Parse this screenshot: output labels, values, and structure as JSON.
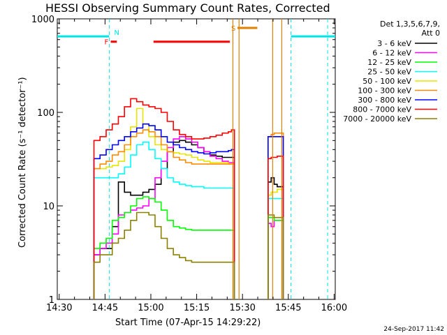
{
  "chart_data": {
    "type": "line",
    "title": "HESSI Observing Summary Count Rates, Corrected",
    "xlabel": "Start Time (07-Apr-15 14:29:22)",
    "ylabel": "Corrected Count Rate (s⁻¹ detector⁻¹)",
    "yscale": "log",
    "ylim": [
      1,
      1000
    ],
    "xlim_minutes": [
      0,
      91
    ],
    "x_ticks": [
      "14:30",
      "14:45",
      "15:00",
      "15:15",
      "15:30",
      "15:45",
      "16:00"
    ],
    "y_ticks": [
      "1",
      "10",
      "100",
      "1000"
    ],
    "legend_header": [
      "Det 1,3,5,6,7,9,",
      "Att 0"
    ],
    "legend_position": "right",
    "timestamp": "24-Sep-2017 11:42",
    "flags": [
      {
        "label": "N",
        "color": "#00e5e5",
        "segments": [
          [
            0,
            17.0
          ],
          [
            76.5,
            91
          ]
        ],
        "level": 650
      },
      {
        "label": "F",
        "color": "#ff0000",
        "segments": [
          [
            17.5,
            19.5
          ],
          [
            31.5,
            56.5
          ]
        ],
        "level": 570
      },
      {
        "label": "S",
        "color": "#e07f00",
        "segments": [
          [
            59.0,
            65.5
          ]
        ],
        "level": 800
      }
    ],
    "saa_intervals": [
      [
        57.5,
        59.5
      ],
      [
        70.5,
        73.5
      ]
    ],
    "night_markers": [
      17.0,
      76.5,
      88.5
    ],
    "series": [
      {
        "name": "3 - 6 keV",
        "color": "#000000",
        "x": [
          12,
          14,
          16,
          18,
          20,
          22,
          24,
          26,
          28,
          30,
          32,
          34,
          36,
          38,
          40,
          42,
          44,
          46,
          48,
          50,
          52,
          54,
          56,
          57,
          69,
          70,
          71,
          72,
          73
        ],
        "y": [
          3.0,
          3.5,
          3.5,
          6,
          18,
          14,
          13,
          13,
          14,
          15,
          17,
          25,
          38,
          48,
          50,
          48,
          45,
          42,
          38,
          35,
          34,
          33,
          33,
          33,
          18,
          20,
          17,
          16,
          16
        ]
      },
      {
        "name": "6 - 12 keV",
        "color": "#ff00ff",
        "x": [
          12,
          14,
          16,
          18,
          20,
          22,
          24,
          26,
          28,
          30,
          32,
          34,
          36,
          38,
          40,
          42,
          44,
          46,
          48,
          50,
          52,
          54,
          56,
          57,
          69,
          70,
          71,
          72,
          73
        ],
        "y": [
          3.0,
          3.5,
          4,
          5,
          8,
          8.5,
          9,
          9.5,
          10,
          12,
          20,
          30,
          42,
          52,
          55,
          52,
          48,
          42,
          38,
          34,
          32,
          30,
          29,
          29,
          6.5,
          6,
          7,
          7,
          7
        ]
      },
      {
        "name": "12 - 25 keV",
        "color": "#00ff00",
        "x": [
          12,
          14,
          16,
          18,
          20,
          22,
          24,
          26,
          28,
          30,
          32,
          34,
          36,
          38,
          40,
          42,
          44,
          46,
          48,
          50,
          52,
          54,
          56,
          57,
          69,
          70,
          71,
          72,
          73
        ],
        "y": [
          3.5,
          4,
          4.5,
          7,
          7.5,
          8.5,
          10,
          12,
          12.5,
          12,
          11,
          9,
          7,
          6,
          5.8,
          5.6,
          5.5,
          5.5,
          5.5,
          5.5,
          5.5,
          5.5,
          5.5,
          5.5,
          7.5,
          7.5,
          7,
          7,
          7
        ]
      },
      {
        "name": "25 - 50 keV",
        "color": "#00ffff",
        "x": [
          12,
          14,
          16,
          18,
          20,
          22,
          24,
          26,
          28,
          30,
          32,
          34,
          36,
          38,
          40,
          42,
          44,
          46,
          48,
          50,
          52,
          54,
          56,
          57,
          69,
          70,
          71,
          72,
          73
        ],
        "y": [
          20,
          20,
          20,
          20,
          22,
          26,
          35,
          45,
          48,
          40,
          32,
          25,
          20,
          18,
          17,
          16.5,
          16,
          16,
          15.5,
          15.5,
          15.5,
          15.5,
          15.5,
          15.5,
          12,
          12,
          12,
          12,
          12
        ]
      },
      {
        "name": "50 - 100 keV",
        "color": "#e5e500",
        "x": [
          12,
          14,
          16,
          18,
          20,
          22,
          24,
          26,
          28,
          30,
          32,
          34,
          36,
          38,
          40,
          42,
          44,
          46,
          48,
          50,
          52,
          54,
          56,
          57,
          69,
          70,
          71,
          72,
          73
        ],
        "y": [
          25,
          25,
          26,
          27,
          30,
          40,
          70,
          110,
          75,
          55,
          45,
          40,
          38,
          37,
          36,
          35,
          33,
          31,
          30,
          29,
          29,
          29,
          28,
          28,
          13,
          14,
          14,
          15,
          15
        ]
      },
      {
        "name": "100 - 300 keV",
        "color": "#ff8c00",
        "x": [
          12,
          14,
          16,
          18,
          20,
          22,
          24,
          26,
          28,
          30,
          32,
          34,
          36,
          38,
          40,
          42,
          44,
          46,
          48,
          50,
          52,
          54,
          56,
          57,
          69,
          70,
          71,
          72,
          73
        ],
        "y": [
          25,
          28,
          30,
          35,
          38,
          45,
          55,
          60,
          65,
          62,
          55,
          45,
          38,
          33,
          31,
          29,
          28,
          28,
          28,
          28,
          28,
          28,
          28,
          28,
          55,
          58,
          60,
          60,
          60
        ]
      },
      {
        "name": "300 - 800 keV",
        "color": "#0000ff",
        "x": [
          12,
          14,
          16,
          18,
          20,
          22,
          24,
          26,
          28,
          30,
          32,
          34,
          36,
          38,
          40,
          42,
          44,
          46,
          48,
          50,
          52,
          54,
          56,
          57,
          69,
          70,
          71,
          72,
          73
        ],
        "y": [
          32,
          35,
          40,
          45,
          50,
          55,
          62,
          68,
          75,
          72,
          65,
          55,
          48,
          45,
          42,
          40,
          38,
          37,
          36,
          37,
          38,
          38,
          39,
          40,
          55,
          55,
          55,
          55,
          55
        ]
      },
      {
        "name": "800 - 7000 keV",
        "color": "#ff0000",
        "x": [
          12,
          14,
          16,
          18,
          20,
          22,
          24,
          26,
          28,
          30,
          32,
          34,
          36,
          38,
          40,
          42,
          44,
          46,
          48,
          50,
          52,
          54,
          56,
          57,
          69,
          70,
          71,
          72,
          73
        ],
        "y": [
          50,
          55,
          65,
          75,
          90,
          115,
          140,
          130,
          120,
          115,
          110,
          100,
          80,
          65,
          58,
          55,
          52,
          52,
          53,
          55,
          57,
          60,
          62,
          65,
          32,
          33,
          33,
          34,
          34
        ]
      },
      {
        "name": "7000 - 20000 keV",
        "color": "#8b8000",
        "x": [
          12,
          14,
          16,
          18,
          20,
          22,
          24,
          26,
          28,
          30,
          32,
          34,
          36,
          38,
          40,
          42,
          44,
          46,
          48,
          50,
          52,
          54,
          56,
          57,
          69,
          70,
          71,
          72,
          73
        ],
        "y": [
          2.5,
          3.0,
          3.0,
          4.0,
          4.5,
          5.5,
          7,
          8.5,
          8.5,
          8,
          6,
          4.5,
          3.5,
          3.0,
          2.8,
          2.6,
          2.5,
          2.5,
          2.5,
          2.5,
          2.5,
          2.5,
          2.5,
          2.5,
          8,
          8,
          7.5,
          7.5,
          7.5
        ]
      }
    ]
  }
}
